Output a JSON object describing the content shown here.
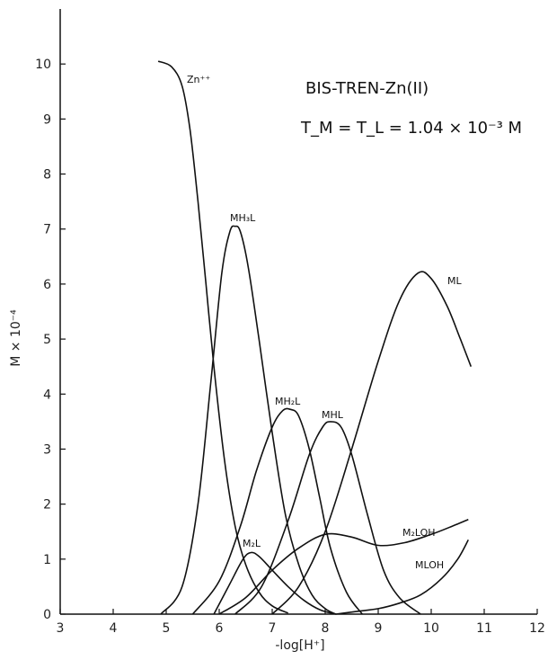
{
  "chart_data": {
    "type": "line",
    "title_line1": "BIS-TREN-Zn(II)",
    "title_line2": "T_M = T_L = 1.04 × 10⁻³ M",
    "xlabel": "-log[H⁺]",
    "ylabel": "M × 10⁻⁴",
    "xlim": [
      3,
      12
    ],
    "ylim": [
      0,
      11
    ],
    "xticks": [
      "3",
      "4",
      "5",
      "6",
      "7",
      "8",
      "9",
      "10",
      "11",
      "12"
    ],
    "yticks": [
      "0",
      "1",
      "2",
      "3",
      "4",
      "5",
      "6",
      "7",
      "8",
      "9",
      "10"
    ],
    "grid": false,
    "series": [
      {
        "name": "Zn⁺⁺",
        "x": [
          4.85,
          5.1,
          5.3,
          5.45,
          5.6,
          5.75,
          5.9,
          6.1,
          6.3,
          6.5,
          6.75,
          7.0,
          7.3
        ],
        "y": [
          10.05,
          9.95,
          9.6,
          8.8,
          7.5,
          6.0,
          4.5,
          2.8,
          1.6,
          0.9,
          0.4,
          0.15,
          0.02
        ]
      },
      {
        "name": "MH₃L",
        "x": [
          4.9,
          5.3,
          5.6,
          5.85,
          6.05,
          6.2,
          6.3,
          6.4,
          6.55,
          6.75,
          7.0,
          7.25,
          7.5,
          7.75,
          8.0,
          8.2
        ],
        "y": [
          0.0,
          0.5,
          2.0,
          4.3,
          6.2,
          6.95,
          7.05,
          6.95,
          6.3,
          5.0,
          3.3,
          1.8,
          0.9,
          0.35,
          0.1,
          0.0
        ]
      },
      {
        "name": "MH₂L",
        "x": [
          5.5,
          6.0,
          6.4,
          6.7,
          7.0,
          7.2,
          7.35,
          7.5,
          7.7,
          7.9,
          8.1,
          8.4,
          8.7
        ],
        "y": [
          0.0,
          0.6,
          1.6,
          2.6,
          3.4,
          3.7,
          3.72,
          3.6,
          3.0,
          2.1,
          1.2,
          0.4,
          0.0
        ]
      },
      {
        "name": "MHL",
        "x": [
          6.3,
          6.8,
          7.3,
          7.7,
          7.95,
          8.1,
          8.3,
          8.5,
          8.8,
          9.1,
          9.4,
          9.8
        ],
        "y": [
          0.0,
          0.5,
          1.7,
          2.9,
          3.4,
          3.5,
          3.4,
          2.9,
          1.8,
          0.8,
          0.3,
          0.0
        ]
      },
      {
        "name": "ML",
        "x": [
          7.0,
          7.5,
          8.0,
          8.5,
          9.0,
          9.4,
          9.75,
          10.0,
          10.3,
          10.55,
          10.75
        ],
        "y": [
          0.0,
          0.5,
          1.5,
          3.0,
          4.6,
          5.7,
          6.2,
          6.1,
          5.6,
          5.0,
          4.5
        ]
      },
      {
        "name": "M₂L",
        "x": [
          5.9,
          6.2,
          6.45,
          6.6,
          6.75,
          7.0,
          7.3,
          7.6,
          7.9,
          8.2
        ],
        "y": [
          0.0,
          0.55,
          1.0,
          1.12,
          1.05,
          0.8,
          0.5,
          0.25,
          0.08,
          0.0
        ]
      },
      {
        "name": "M₂LOH",
        "x": [
          6.0,
          6.5,
          7.0,
          7.5,
          8.0,
          8.5,
          9.0,
          9.5,
          10.0,
          10.4,
          10.7
        ],
        "y": [
          0.0,
          0.3,
          0.8,
          1.2,
          1.45,
          1.4,
          1.25,
          1.3,
          1.45,
          1.6,
          1.72
        ]
      },
      {
        "name": "MLOH",
        "x": [
          8.2,
          8.6,
          9.0,
          9.4,
          9.8,
          10.2,
          10.5,
          10.7
        ],
        "y": [
          0.0,
          0.05,
          0.1,
          0.2,
          0.35,
          0.65,
          1.0,
          1.35
        ]
      }
    ],
    "colors": {
      "line": "#111111",
      "axis": "#111111",
      "background": "#ffffff"
    }
  }
}
